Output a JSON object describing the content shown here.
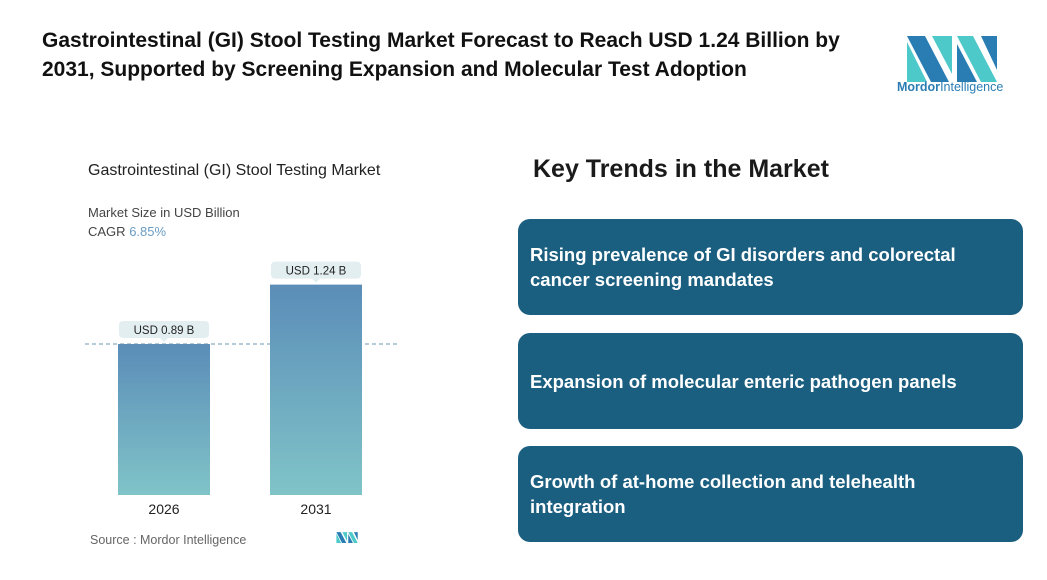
{
  "header": {
    "title": "Gastrointestinal (GI) Stool Testing Market Forecast to Reach USD 1.24 Billion by 2031, Supported by Screening Expansion and Molecular Test Adoption"
  },
  "logo": {
    "brand_bold": "Mordor",
    "brand_rest": "Intelligence"
  },
  "chart_data": {
    "type": "bar",
    "title": "Gastrointestinal (GI) Stool Testing Market",
    "subtitle": "Market Size in USD Billion",
    "cagr_label": "CAGR",
    "cagr_value": "6.85%",
    "categories": [
      "2026",
      "2031"
    ],
    "values": [
      0.89,
      1.24
    ],
    "data_labels": [
      "USD 0.89 B",
      "USD 1.24 B"
    ],
    "ylim": [
      0,
      1.5
    ],
    "reference_line": 0.89,
    "colors": {
      "bar_top": "#5b8db8",
      "bar_bottom": "#80c4c8"
    }
  },
  "source": "Source :  Mordor Intelligence",
  "trends": {
    "heading": "Key Trends in the Market",
    "items": [
      "Rising prevalence of GI disorders and colorectal cancer screening mandates",
      "Expansion of molecular enteric pathogen panels",
      "Growth of at-home collection and telehealth integration"
    ]
  }
}
